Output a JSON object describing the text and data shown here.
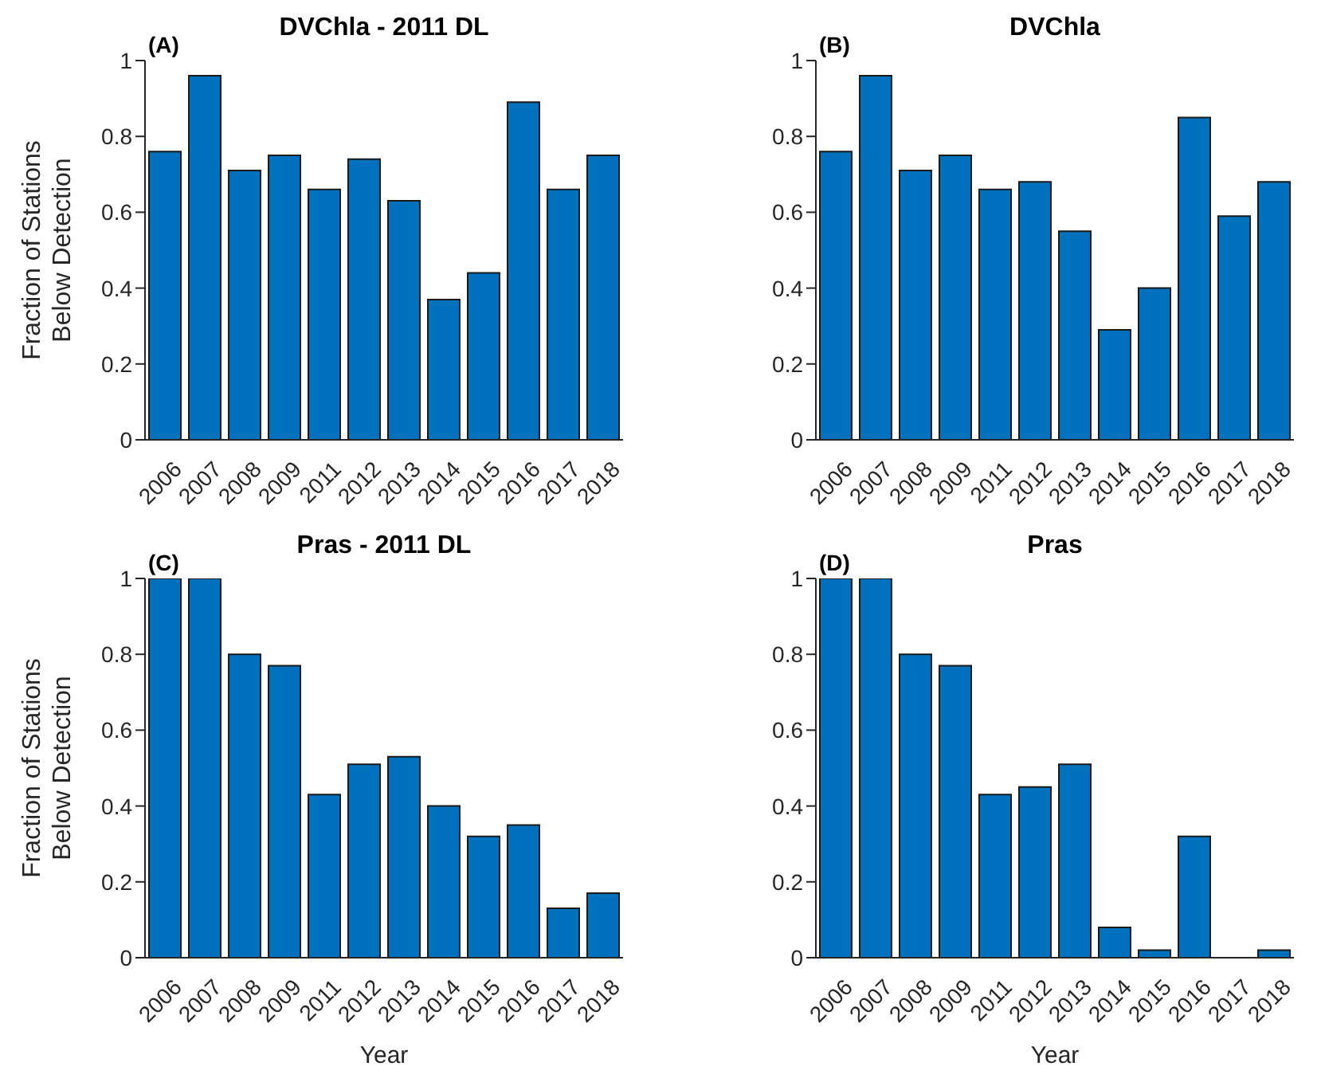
{
  "chart_data": [
    {
      "type": "bar",
      "title": "DVChla - 2011 DL",
      "annotations": [
        "(A)"
      ],
      "ylabel": "Fraction of Stations Below Detection",
      "categories": [
        "2006",
        "2007",
        "2008",
        "2009",
        "2011",
        "2012",
        "2013",
        "2014",
        "2015",
        "2016",
        "2017",
        "2018"
      ],
      "values": [
        0.76,
        0.96,
        0.71,
        0.75,
        0.66,
        0.74,
        0.63,
        0.37,
        0.44,
        0.89,
        0.66,
        0.75
      ],
      "color": "#0072bd",
      "ylim": [
        0,
        1
      ],
      "yticks": [
        0,
        0.2,
        0.4,
        0.6,
        0.8,
        1
      ]
    },
    {
      "type": "bar",
      "title": "DVChla",
      "annotations": [
        "(B)"
      ],
      "categories": [
        "2006",
        "2007",
        "2008",
        "2009",
        "2011",
        "2012",
        "2013",
        "2014",
        "2015",
        "2016",
        "2017",
        "2018"
      ],
      "values": [
        0.76,
        0.96,
        0.71,
        0.75,
        0.66,
        0.68,
        0.55,
        0.29,
        0.4,
        0.85,
        0.59,
        0.68
      ],
      "color": "#0072bd",
      "ylim": [
        0,
        1
      ],
      "yticks": [
        0,
        0.2,
        0.4,
        0.6,
        0.8,
        1
      ]
    },
    {
      "type": "bar",
      "title": "Pras - 2011 DL",
      "annotations": [
        "(C)"
      ],
      "ylabel": "Fraction of Stations Below Detection",
      "xlabel": "Year",
      "categories": [
        "2006",
        "2007",
        "2008",
        "2009",
        "2011",
        "2012",
        "2013",
        "2014",
        "2015",
        "2016",
        "2017",
        "2018"
      ],
      "values": [
        1,
        1,
        0.8,
        0.77,
        0.43,
        0.51,
        0.53,
        0.4,
        0.32,
        0.35,
        0.13,
        0.17
      ],
      "color": "#0072bd",
      "ylim": [
        0,
        1
      ],
      "yticks": [
        0,
        0.2,
        0.4,
        0.6,
        0.8,
        1
      ]
    },
    {
      "type": "bar",
      "title": "Pras",
      "annotations": [
        "(D)"
      ],
      "xlabel": "Year",
      "categories": [
        "2006",
        "2007",
        "2008",
        "2009",
        "2011",
        "2012",
        "2013",
        "2014",
        "2015",
        "2016",
        "2017",
        "2018"
      ],
      "values": [
        1,
        1,
        0.8,
        0.77,
        0.43,
        0.45,
        0.51,
        0.08,
        0.02,
        0.32,
        0,
        0.02
      ],
      "color": "#0072bd",
      "ylim": [
        0,
        1
      ],
      "yticks": [
        0,
        0.2,
        0.4,
        0.6,
        0.8,
        1
      ]
    }
  ]
}
